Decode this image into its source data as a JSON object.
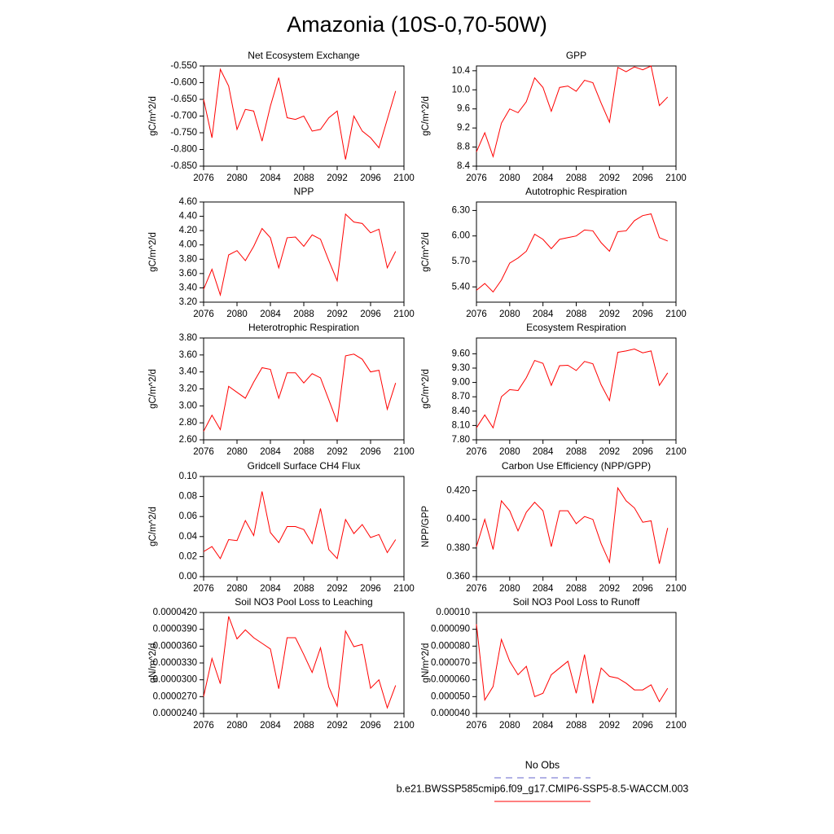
{
  "title": "Amazonia (10S-0,70-50W)",
  "legend": [
    {
      "name": "No Obs",
      "color": "#6666cc",
      "dashed": true
    },
    {
      "name": "b.e21.BWSSP585cmip6.f09_g17.CMIP6-SSP5-8.5-WACCM.003",
      "color": "#ff0000",
      "dashed": false
    }
  ],
  "chart_data": [
    {
      "type": "line",
      "title": "Net Ecosystem Exchange",
      "y_label": "gC/m^2/d",
      "x": [
        2076,
        2077,
        2078,
        2079,
        2080,
        2081,
        2082,
        2083,
        2084,
        2085,
        2086,
        2087,
        2088,
        2089,
        2090,
        2091,
        2092,
        2093,
        2094,
        2095,
        2096,
        2097,
        2098,
        2099
      ],
      "series": [
        {
          "name": "b.e21.BWSSP585cmip6.f09_g17.CMIP6-SSP5-8.5-WACCM.003",
          "color": "#ff0000",
          "values": [
            -0.65,
            -0.765,
            -0.56,
            -0.61,
            -0.74,
            -0.68,
            -0.685,
            -0.775,
            -0.67,
            -0.585,
            -0.705,
            -0.71,
            -0.7,
            -0.745,
            -0.74,
            -0.705,
            -0.685,
            -0.83,
            -0.7,
            -0.745,
            -0.765,
            -0.795,
            -0.71,
            -0.625
          ]
        }
      ],
      "xlim": [
        2076,
        2100
      ],
      "xticks": [
        2076,
        2080,
        2084,
        2088,
        2092,
        2096,
        2100
      ],
      "ylim": [
        -0.85,
        -0.55
      ],
      "yticks": [
        {
          "value": -0.55,
          "label": "-0.550"
        },
        {
          "value": -0.6,
          "label": "-0.600"
        },
        {
          "value": -0.65,
          "label": "-0.650"
        },
        {
          "value": -0.7,
          "label": "-0.700"
        },
        {
          "value": -0.75,
          "label": "-0.750"
        },
        {
          "value": -0.8,
          "label": "-0.800"
        },
        {
          "value": -0.85,
          "label": "-0.850"
        }
      ]
    },
    {
      "type": "line",
      "title": "GPP",
      "y_label": "gC/m^2/d",
      "x": [
        2076,
        2077,
        2078,
        2079,
        2080,
        2081,
        2082,
        2083,
        2084,
        2085,
        2086,
        2087,
        2088,
        2089,
        2090,
        2091,
        2092,
        2093,
        2094,
        2095,
        2096,
        2097,
        2098,
        2099
      ],
      "series": [
        {
          "name": "b.e21.BWSSP585cmip6.f09_g17.CMIP6-SSP5-8.5-WACCM.003",
          "color": "#ff0000",
          "values": [
            8.7,
            9.1,
            8.6,
            9.3,
            9.6,
            9.52,
            9.75,
            10.25,
            10.05,
            9.55,
            10.05,
            10.08,
            9.97,
            10.2,
            10.15,
            9.72,
            9.32,
            10.47,
            10.38,
            10.48,
            10.42,
            10.5,
            9.67,
            9.85
          ]
        }
      ],
      "xlim": [
        2076,
        2100
      ],
      "xticks": [
        2076,
        2080,
        2084,
        2088,
        2092,
        2096,
        2100
      ],
      "ylim": [
        8.4,
        10.5
      ],
      "yticks": [
        8.4,
        8.8,
        9.2,
        9.6,
        {
          "value": 10,
          "label": "10.0"
        },
        10.4
      ]
    },
    {
      "type": "line",
      "title": "NPP",
      "y_label": "gC/m^2/d",
      "x": [
        2076,
        2077,
        2078,
        2079,
        2080,
        2081,
        2082,
        2083,
        2084,
        2085,
        2086,
        2087,
        2088,
        2089,
        2090,
        2091,
        2092,
        2093,
        2094,
        2095,
        2096,
        2097,
        2098,
        2099
      ],
      "series": [
        {
          "name": "b.e21.BWSSP585cmip6.f09_g17.CMIP6-SSP5-8.5-WACCM.003",
          "color": "#ff0000",
          "values": [
            3.38,
            3.66,
            3.3,
            3.86,
            3.92,
            3.78,
            3.98,
            4.23,
            4.1,
            3.68,
            4.1,
            4.11,
            3.98,
            4.14,
            4.08,
            3.78,
            3.5,
            4.43,
            4.32,
            4.3,
            4.17,
            4.22,
            3.68,
            3.91
          ]
        }
      ],
      "xlim": [
        2076,
        2100
      ],
      "xticks": [
        2076,
        2080,
        2084,
        2088,
        2092,
        2096,
        2100
      ],
      "ylim": [
        3.2,
        4.6
      ],
      "yticks": [
        {
          "value": 3.2,
          "label": "3.20"
        },
        {
          "value": 3.4,
          "label": "3.40"
        },
        {
          "value": 3.6,
          "label": "3.60"
        },
        {
          "value": 3.8,
          "label": "3.80"
        },
        {
          "value": 4,
          "label": "4.00"
        },
        {
          "value": 4.2,
          "label": "4.20"
        },
        {
          "value": 4.4,
          "label": "4.40"
        },
        {
          "value": 4.6,
          "label": "4.60"
        }
      ]
    },
    {
      "type": "line",
      "title": "Autotrophic Respiration",
      "y_label": "gC/m^2/d",
      "x": [
        2076,
        2077,
        2078,
        2079,
        2080,
        2081,
        2082,
        2083,
        2084,
        2085,
        2086,
        2087,
        2088,
        2089,
        2090,
        2091,
        2092,
        2093,
        2094,
        2095,
        2096,
        2097,
        2098,
        2099
      ],
      "series": [
        {
          "name": "b.e21.BWSSP585cmip6.f09_g17.CMIP6-SSP5-8.5-WACCM.003",
          "color": "#ff0000",
          "values": [
            5.36,
            5.44,
            5.34,
            5.48,
            5.68,
            5.74,
            5.82,
            6.02,
            5.96,
            5.85,
            5.96,
            5.98,
            6.0,
            6.07,
            6.06,
            5.92,
            5.82,
            6.05,
            6.06,
            6.18,
            6.24,
            6.26,
            5.98,
            5.94
          ]
        }
      ],
      "xlim": [
        2076,
        2100
      ],
      "xticks": [
        2076,
        2080,
        2084,
        2088,
        2092,
        2096,
        2100
      ],
      "ylim": [
        5.22,
        6.4
      ],
      "yticks": [
        {
          "value": 5.4,
          "label": "5.40"
        },
        {
          "value": 5.7,
          "label": "5.70"
        },
        {
          "value": 6,
          "label": "6.00"
        },
        {
          "value": 6.3,
          "label": "6.30"
        }
      ]
    },
    {
      "type": "line",
      "title": "Heterotrophic Respiration",
      "y_label": "gC/m^2/d",
      "x": [
        2076,
        2077,
        2078,
        2079,
        2080,
        2081,
        2082,
        2083,
        2084,
        2085,
        2086,
        2087,
        2088,
        2089,
        2090,
        2091,
        2092,
        2093,
        2094,
        2095,
        2096,
        2097,
        2098,
        2099
      ],
      "series": [
        {
          "name": "b.e21.BWSSP585cmip6.f09_g17.CMIP6-SSP5-8.5-WACCM.003",
          "color": "#ff0000",
          "values": [
            2.7,
            2.89,
            2.72,
            3.23,
            3.16,
            3.09,
            3.28,
            3.45,
            3.43,
            3.09,
            3.39,
            3.39,
            3.27,
            3.38,
            3.33,
            3.07,
            2.81,
            3.59,
            3.61,
            3.55,
            3.4,
            3.42,
            2.96,
            3.27
          ]
        }
      ],
      "xlim": [
        2076,
        2100
      ],
      "xticks": [
        2076,
        2080,
        2084,
        2088,
        2092,
        2096,
        2100
      ],
      "ylim": [
        2.6,
        3.8
      ],
      "yticks": [
        {
          "value": 2.6,
          "label": "2.60"
        },
        {
          "value": 2.8,
          "label": "2.80"
        },
        {
          "value": 3,
          "label": "3.00"
        },
        {
          "value": 3.2,
          "label": "3.20"
        },
        {
          "value": 3.4,
          "label": "3.40"
        },
        {
          "value": 3.6,
          "label": "3.60"
        },
        {
          "value": 3.8,
          "label": "3.80"
        }
      ]
    },
    {
      "type": "line",
      "title": "Ecosystem Respiration",
      "y_label": "gC/m^2/d",
      "x": [
        2076,
        2077,
        2078,
        2079,
        2080,
        2081,
        2082,
        2083,
        2084,
        2085,
        2086,
        2087,
        2088,
        2089,
        2090,
        2091,
        2092,
        2093,
        2094,
        2095,
        2096,
        2097,
        2098,
        2099
      ],
      "series": [
        {
          "name": "b.e21.BWSSP585cmip6.f09_g17.CMIP6-SSP5-8.5-WACCM.003",
          "color": "#ff0000",
          "values": [
            8.05,
            8.32,
            8.05,
            8.7,
            8.85,
            8.83,
            9.1,
            9.46,
            9.4,
            8.94,
            9.35,
            9.36,
            9.25,
            9.44,
            9.39,
            8.95,
            8.62,
            9.63,
            9.66,
            9.7,
            9.62,
            9.66,
            8.94,
            9.2
          ]
        }
      ],
      "xlim": [
        2076,
        2100
      ],
      "xticks": [
        2076,
        2080,
        2084,
        2088,
        2092,
        2096,
        2100
      ],
      "ylim": [
        7.8,
        9.93
      ],
      "yticks": [
        {
          "value": 7.8,
          "label": "7.80"
        },
        {
          "value": 8.1,
          "label": "8.10"
        },
        {
          "value": 8.4,
          "label": "8.40"
        },
        {
          "value": 8.7,
          "label": "8.70"
        },
        {
          "value": 9,
          "label": "9.00"
        },
        {
          "value": 9.3,
          "label": "9.30"
        },
        {
          "value": 9.6,
          "label": "9.60"
        }
      ]
    },
    {
      "type": "line",
      "title": "Gridcell Surface CH4 Flux",
      "y_label": "gC/m^2/d",
      "x": [
        2076,
        2077,
        2078,
        2079,
        2080,
        2081,
        2082,
        2083,
        2084,
        2085,
        2086,
        2087,
        2088,
        2089,
        2090,
        2091,
        2092,
        2093,
        2094,
        2095,
        2096,
        2097,
        2098,
        2099
      ],
      "series": [
        {
          "name": "b.e21.BWSSP585cmip6.f09_g17.CMIP6-SSP5-8.5-WACCM.003",
          "color": "#ff0000",
          "values": [
            0.025,
            0.03,
            0.018,
            0.037,
            0.036,
            0.056,
            0.041,
            0.085,
            0.044,
            0.034,
            0.05,
            0.05,
            0.047,
            0.033,
            0.068,
            0.027,
            0.018,
            0.057,
            0.043,
            0.052,
            0.039,
            0.042,
            0.024,
            0.037
          ]
        }
      ],
      "xlim": [
        2076,
        2100
      ],
      "xticks": [
        2076,
        2080,
        2084,
        2088,
        2092,
        2096,
        2100
      ],
      "ylim": [
        0,
        0.1
      ],
      "yticks": [
        {
          "value": 0,
          "label": "0.00"
        },
        {
          "value": 0.02,
          "label": "0.02"
        },
        {
          "value": 0.04,
          "label": "0.04"
        },
        {
          "value": 0.06,
          "label": "0.06"
        },
        {
          "value": 0.08,
          "label": "0.08"
        },
        {
          "value": 0.1,
          "label": "0.10"
        }
      ]
    },
    {
      "type": "line",
      "title": "Carbon Use Efficiency (NPP/GPP)",
      "y_label": "NPP/GPP",
      "x": [
        2076,
        2077,
        2078,
        2079,
        2080,
        2081,
        2082,
        2083,
        2084,
        2085,
        2086,
        2087,
        2088,
        2089,
        2090,
        2091,
        2092,
        2093,
        2094,
        2095,
        2096,
        2097,
        2098,
        2099
      ],
      "series": [
        {
          "name": "b.e21.BWSSP585cmip6.f09_g17.CMIP6-SSP5-8.5-WACCM.003",
          "color": "#ff0000",
          "values": [
            0.381,
            0.4,
            0.379,
            0.413,
            0.406,
            0.392,
            0.405,
            0.412,
            0.406,
            0.381,
            0.406,
            0.406,
            0.397,
            0.402,
            0.4,
            0.383,
            0.37,
            0.422,
            0.413,
            0.408,
            0.398,
            0.399,
            0.369,
            0.394
          ]
        }
      ],
      "xlim": [
        2076,
        2100
      ],
      "xticks": [
        2076,
        2080,
        2084,
        2088,
        2092,
        2096,
        2100
      ],
      "ylim": [
        0.36,
        0.43
      ],
      "yticks": [
        {
          "value": 0.36,
          "label": "0.360"
        },
        {
          "value": 0.38,
          "label": "0.380"
        },
        {
          "value": 0.4,
          "label": "0.400"
        },
        {
          "value": 0.42,
          "label": "0.420"
        }
      ]
    },
    {
      "type": "line",
      "title": "Soil NO3 Pool Loss to Leaching",
      "y_label": "gN/m^2/d",
      "x": [
        2076,
        2077,
        2078,
        2079,
        2080,
        2081,
        2082,
        2083,
        2084,
        2085,
        2086,
        2087,
        2088,
        2089,
        2090,
        2091,
        2092,
        2093,
        2094,
        2095,
        2096,
        2097,
        2098,
        2099
      ],
      "series": [
        {
          "name": "b.e21.BWSSP585cmip6.f09_g17.CMIP6-SSP5-8.5-WACCM.003",
          "color": "#ff0000",
          "values": [
            2.7e-05,
            3.38e-05,
            2.93e-05,
            4.13e-05,
            3.73e-05,
            3.89e-05,
            3.75e-05,
            3.65e-05,
            3.55e-05,
            2.84e-05,
            3.75e-05,
            3.75e-05,
            3.45e-05,
            3.13e-05,
            3.57e-05,
            2.87e-05,
            2.53e-05,
            3.87e-05,
            3.59e-05,
            3.63e-05,
            2.85e-05,
            3e-05,
            2.5e-05,
            2.9e-05
          ]
        }
      ],
      "xlim": [
        2076,
        2100
      ],
      "xticks": [
        2076,
        2080,
        2084,
        2088,
        2092,
        2096,
        2100
      ],
      "ylim": [
        2.4e-05,
        4.2e-05
      ],
      "yticks": [
        {
          "value": 2.4e-05,
          "label": "0.0000240"
        },
        {
          "value": 2.7e-05,
          "label": "0.0000270"
        },
        {
          "value": 3e-05,
          "label": "0.0000300"
        },
        {
          "value": 3.3e-05,
          "label": "0.0000330"
        },
        {
          "value": 3.6e-05,
          "label": "0.0000360"
        },
        {
          "value": 3.9e-05,
          "label": "0.0000390"
        },
        {
          "value": 4.2e-05,
          "label": "0.0000420"
        }
      ]
    },
    {
      "type": "line",
      "title": "Soil NO3 Pool Loss to Runoff",
      "y_label": "gN/m^2/d",
      "x": [
        2076,
        2077,
        2078,
        2079,
        2080,
        2081,
        2082,
        2083,
        2084,
        2085,
        2086,
        2087,
        2088,
        2089,
        2090,
        2091,
        2092,
        2093,
        2094,
        2095,
        2096,
        2097,
        2098,
        2099
      ],
      "series": [
        {
          "name": "b.e21.BWSSP585cmip6.f09_g17.CMIP6-SSP5-8.5-WACCM.003",
          "color": "#ff0000",
          "values": [
            9.3e-05,
            4.8e-05,
            5.6e-05,
            8.4e-05,
            7.1e-05,
            6.3e-05,
            6.8e-05,
            5e-05,
            5.2e-05,
            6.3e-05,
            6.7e-05,
            7.1e-05,
            5.2e-05,
            7.5e-05,
            4.6e-05,
            6.7e-05,
            6.2e-05,
            6.1e-05,
            5.8e-05,
            5.4e-05,
            5.4e-05,
            5.7e-05,
            4.7e-05,
            5.5e-05
          ]
        }
      ],
      "xlim": [
        2076,
        2100
      ],
      "xticks": [
        2076,
        2080,
        2084,
        2088,
        2092,
        2096,
        2100
      ],
      "ylim": [
        4e-05,
        0.0001
      ],
      "yticks": [
        {
          "value": 4e-05,
          "label": "0.000040"
        },
        {
          "value": 5e-05,
          "label": "0.000050"
        },
        {
          "value": 6e-05,
          "label": "0.000060"
        },
        {
          "value": 7e-05,
          "label": "0.000070"
        },
        {
          "value": 8e-05,
          "label": "0.000080"
        },
        {
          "value": 9e-05,
          "label": "0.000090"
        },
        {
          "value": 0.0001,
          "label": "0.00010"
        }
      ]
    }
  ]
}
